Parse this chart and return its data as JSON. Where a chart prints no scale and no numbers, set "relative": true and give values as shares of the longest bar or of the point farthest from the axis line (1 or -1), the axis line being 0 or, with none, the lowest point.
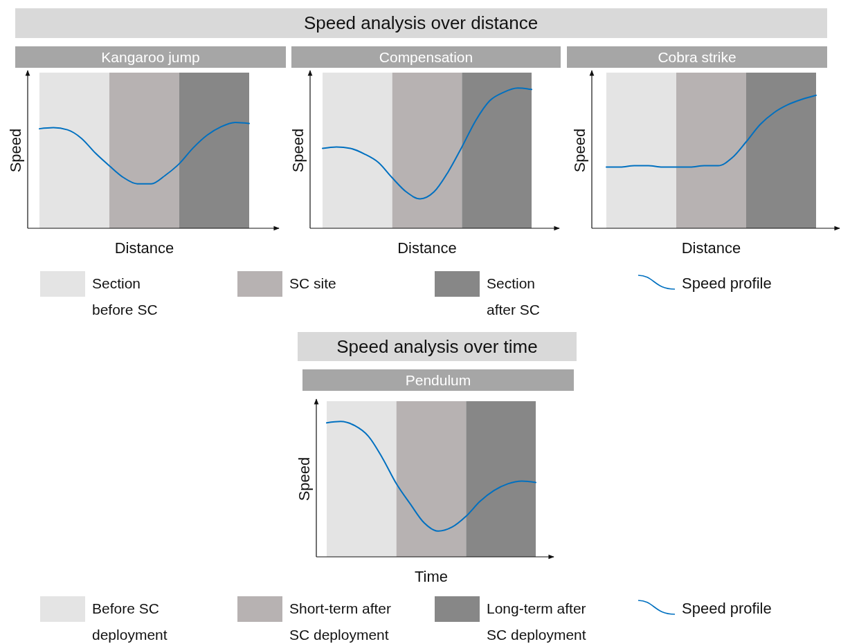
{
  "chart_data": [
    {
      "type": "line",
      "subtitle": "Kangaroo jump",
      "xlabel": "Distance",
      "ylabel": "Speed",
      "relative": true,
      "legend": "bottom",
      "categories": [
        null,
        null,
        null,
        null,
        null,
        null,
        null,
        null,
        null,
        null,
        null,
        null,
        null,
        null,
        null,
        null
      ],
      "annotations": [
        "Speed analysis over distance",
        "Section\nbefore SC",
        "SC site",
        "Section\nafter SC"
      ],
      "series": [
        {
          "name": "Speed profile",
          "color": "#0070c0",
          "values": [
            0.94,
            0.95,
            0.93,
            0.85,
            0.71,
            0.59,
            0.48,
            0.42,
            0.42,
            0.5,
            0.61,
            0.76,
            0.88,
            0.96,
            1,
            0.99
          ]
        }
      ]
    },
    {
      "type": "line",
      "subtitle": "Compensation",
      "xlabel": "Distance",
      "ylabel": "Speed",
      "relative": true,
      "categories": [
        null,
        null,
        null,
        null,
        null,
        null,
        null,
        null,
        null,
        null,
        null,
        null,
        null,
        null,
        null,
        null
      ],
      "series": [
        {
          "color": "#0070c0",
          "values": [
            0.57,
            0.58,
            0.57,
            0.53,
            0.47,
            0.36,
            0.26,
            0.21,
            0.26,
            0.4,
            0.58,
            0.77,
            0.91,
            0.97,
            1,
            0.99
          ]
        }
      ]
    },
    {
      "type": "line",
      "subtitle": "Cobra strike",
      "xlabel": "Distance",
      "ylabel": "Speed",
      "relative": true,
      "categories": [
        null,
        null,
        null,
        null,
        null,
        null,
        null,
        null,
        null,
        null,
        null,
        null,
        null,
        null,
        null,
        null
      ],
      "series": [
        {
          "color": "#0070c0",
          "values": [
            0.46,
            0.46,
            0.47,
            0.47,
            0.46,
            0.46,
            0.46,
            0.47,
            0.47,
            0.53,
            0.65,
            0.78,
            0.87,
            0.93,
            0.97,
            1
          ]
        }
      ]
    },
    {
      "type": "line",
      "title": "Speed analysis over time",
      "subtitle": "Pendulum",
      "xlabel": "Time",
      "ylabel": "Speed",
      "relative": true,
      "legend": "bottom",
      "categories": [
        null,
        null,
        null,
        null,
        null,
        null,
        null,
        null,
        null,
        null,
        null,
        null,
        null,
        null,
        null,
        null
      ],
      "annotations": [
        "Before SC\ndeployment",
        "Short-term after\nSC deployment",
        "Long-term after\nSC deployment"
      ],
      "series": [
        {
          "name": "Speed profile",
          "color": "#0070c0",
          "values": [
            0.99,
            1,
            0.97,
            0.89,
            0.73,
            0.54,
            0.39,
            0.25,
            0.19,
            0.22,
            0.3,
            0.41,
            0.49,
            0.54,
            0.56,
            0.55
          ]
        }
      ]
    }
  ]
}
